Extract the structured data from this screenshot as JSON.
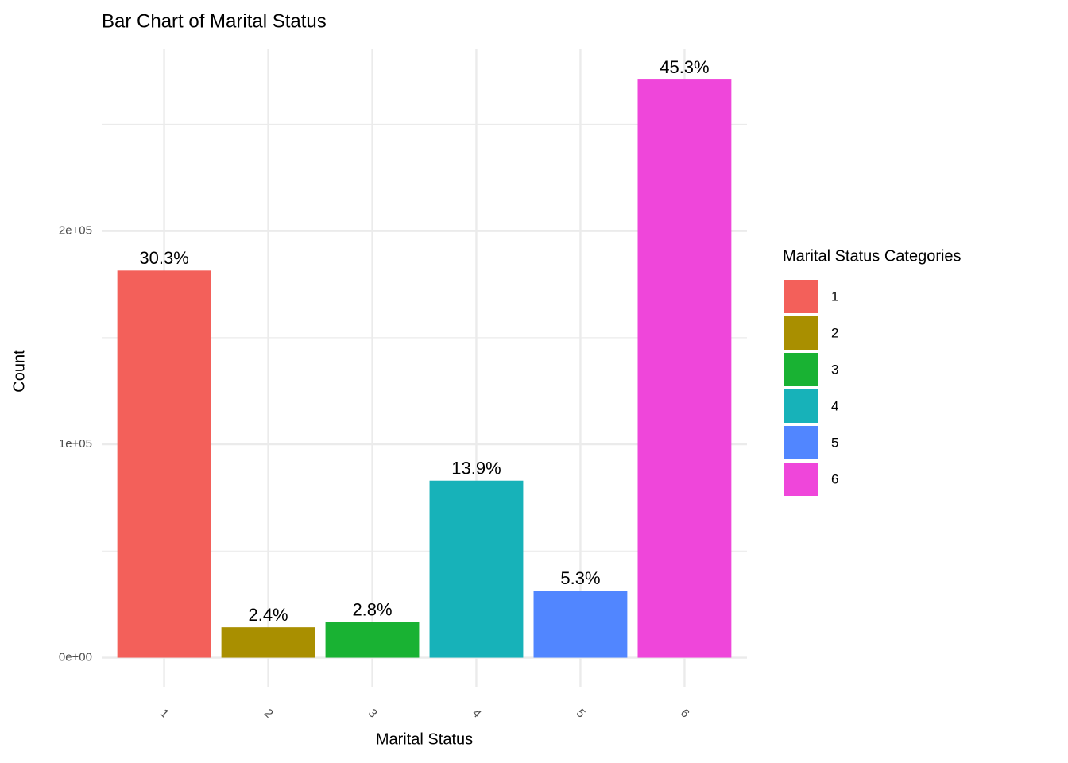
{
  "chart_data": {
    "type": "bar",
    "title": "Bar Chart of Marital Status",
    "x_label": "Marital Status",
    "y_label": "Count",
    "legend_title": "Marital Status Categories",
    "legend_position": "right",
    "categories": [
      "1",
      "2",
      "3",
      "4",
      "5",
      "6"
    ],
    "values": [
      181500,
      14300,
      16700,
      83000,
      31400,
      271000
    ],
    "value_labels": [
      "30.3%",
      "2.4%",
      "2.8%",
      "13.9%",
      "5.3%",
      "45.3%"
    ],
    "colors": [
      "#f3605a",
      "#a98f00",
      "#19b233",
      "#17b2b9",
      "#5186ff",
      "#ef46da"
    ],
    "ylim": [
      -13580,
      285180
    ],
    "yticks": [
      {
        "value": 0,
        "label": "0e+00"
      },
      {
        "value": 100000,
        "label": "1e+05"
      },
      {
        "value": 200000,
        "label": "2e+05"
      }
    ],
    "minor_yticks": [
      50000,
      150000,
      250000
    ],
    "grid": true
  }
}
